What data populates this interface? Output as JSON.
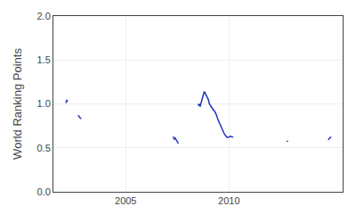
{
  "chart_data": {
    "type": "line",
    "ylabel": "World Ranking Points",
    "color": "#2233bb",
    "grid": true,
    "xlim": [
      2001.5,
      2015.5
    ],
    "ylim": [
      0,
      2
    ],
    "xticks": [
      2005,
      2010
    ],
    "yticks": [
      {
        "value": 0,
        "label": "0.0"
      },
      0.5,
      {
        "value": 1,
        "label": "1.0"
      },
      1.5,
      {
        "value": 2,
        "label": "2.0"
      }
    ],
    "x": [
      2002.1,
      2002.15,
      2002.2,
      null,
      2002.7,
      2002.75,
      2002.8,
      2002.85,
      null,
      2007.3,
      2007.35,
      2007.4,
      2007.5,
      2007.55,
      null,
      2008.5,
      2008.55,
      2008.6,
      2008.65,
      2008.7,
      2008.75,
      2008.8,
      2008.85,
      2008.9,
      2009.0,
      2009.05,
      2009.1,
      2009.15,
      2009.2,
      2009.25,
      2009.3,
      2009.35,
      2009.4,
      2009.45,
      2009.5,
      2009.55,
      2009.6,
      2009.65,
      2009.7,
      2009.75,
      2009.8,
      2009.85,
      2009.9,
      2009.95,
      2010.0,
      2010.05,
      2010.1,
      2010.15,
      2010.2,
      null,
      2012.8,
      2012.85,
      null,
      2014.8,
      2014.85,
      2014.9,
      2014.95
    ],
    "values": [
      1.01,
      1.04,
      1.03,
      null,
      0.87,
      0.85,
      0.84,
      0.83,
      null,
      0.63,
      0.6,
      0.61,
      0.57,
      0.55,
      null,
      0.98,
      1.0,
      0.97,
      1.02,
      1.05,
      1.1,
      1.14,
      1.12,
      1.1,
      1.05,
      1.0,
      0.98,
      0.97,
      0.95,
      0.93,
      0.92,
      0.9,
      0.87,
      0.83,
      0.8,
      0.78,
      0.76,
      0.73,
      0.7,
      0.67,
      0.65,
      0.63,
      0.62,
      0.62,
      0.63,
      0.63,
      0.63,
      0.62,
      0.62,
      null,
      0.57,
      0.58,
      null,
      0.59,
      0.61,
      0.62,
      0.62
    ]
  }
}
